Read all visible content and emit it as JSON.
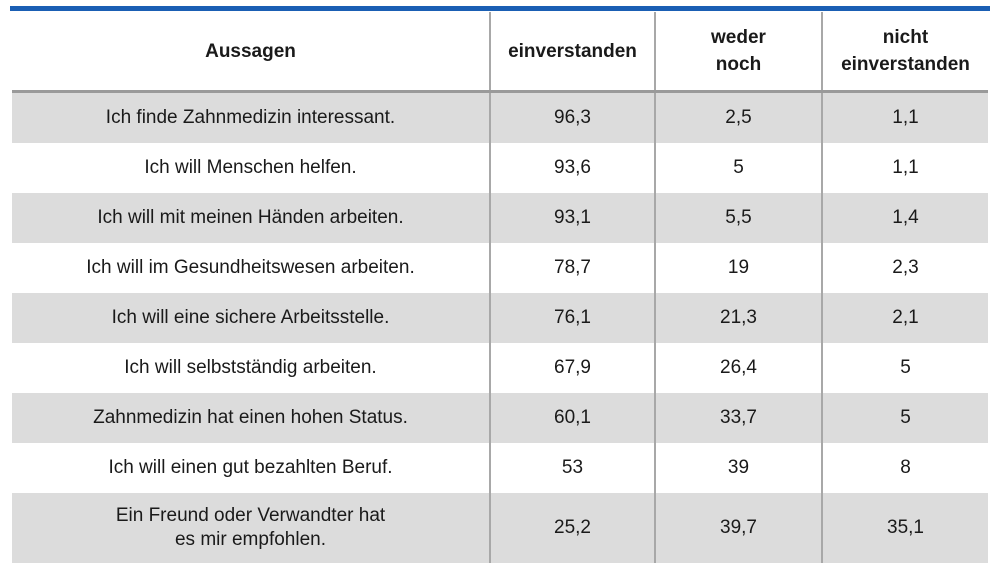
{
  "table": {
    "header": [
      "Aussagen",
      "einverstanden",
      "weder\nnoch",
      "nicht\neinverstanden"
    ],
    "rows": [
      [
        "Ich finde Zahnmedizin interessant.",
        "96,3",
        "2,5",
        "1,1"
      ],
      [
        "Ich will Menschen helfen.",
        "93,6",
        "5",
        "1,1"
      ],
      [
        "Ich will mit meinen Händen arbeiten.",
        "93,1",
        "5,5",
        "1,4"
      ],
      [
        "Ich will im Gesundheitswesen arbeiten.",
        "78,7",
        "19",
        "2,3"
      ],
      [
        "Ich will eine sichere Arbeitsstelle.",
        "76,1",
        "21,3",
        "2,1"
      ],
      [
        "Ich will selbstständig arbeiten.",
        "67,9",
        "26,4",
        "5"
      ],
      [
        "Zahnmedizin hat einen hohen Status.",
        "60,1",
        "33,7",
        "5"
      ],
      [
        "Ich will einen gut bezahlten Beruf.",
        "53",
        "39",
        "8"
      ],
      [
        "Ein Freund oder Verwandter hat\nes mir empfohlen.",
        "25,2",
        "39,7",
        "35,1"
      ]
    ]
  }
}
